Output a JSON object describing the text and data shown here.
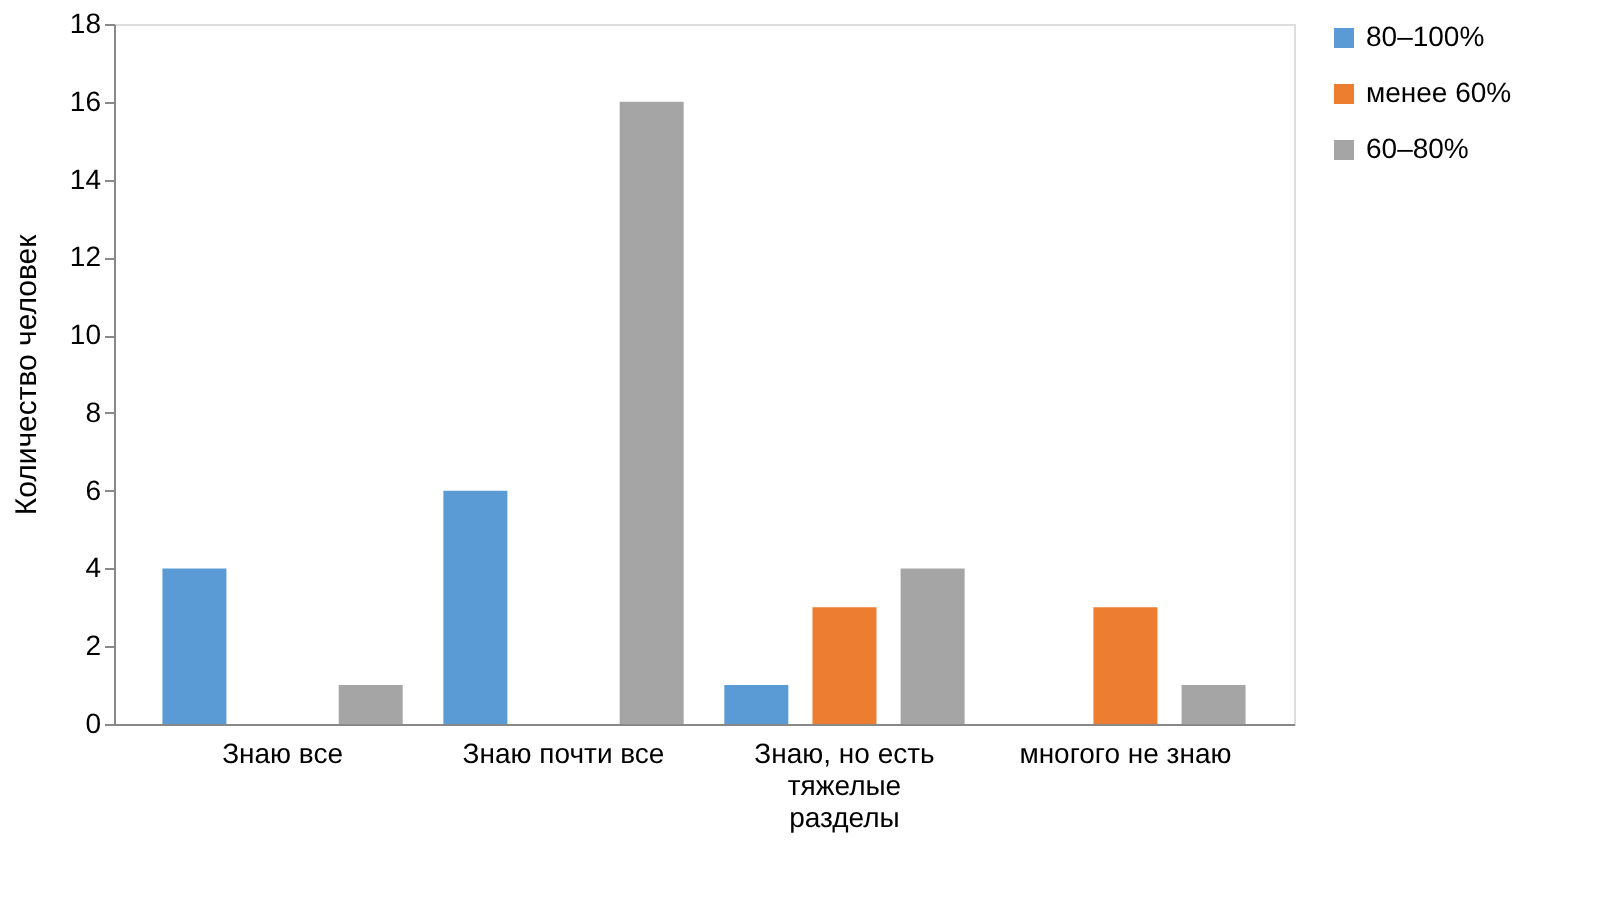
{
  "chart_data": {
    "type": "bar",
    "ylabel": "Количество человек",
    "categories": [
      "Знаю все",
      "Знаю почти все",
      "Знаю, но есть тяжелые разделы",
      "многого не знаю"
    ],
    "series": [
      {
        "name": "80–100%",
        "color": "#5b9bd5",
        "values": [
          4,
          6,
          1,
          null
        ]
      },
      {
        "name": "менее 60%",
        "color": "#ed7d31",
        "values": [
          null,
          null,
          3,
          3
        ]
      },
      {
        "name": "60–80%",
        "color": "#a5a5a5",
        "values": [
          1,
          16,
          4,
          1
        ]
      }
    ],
    "ylim": [
      0,
      18
    ],
    "yticks": [
      0,
      2,
      4,
      6,
      8,
      10,
      12,
      14,
      16,
      18
    ],
    "grid": false,
    "legend": "right"
  }
}
